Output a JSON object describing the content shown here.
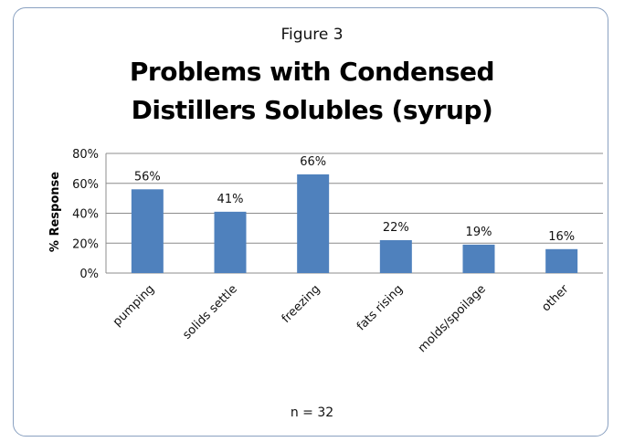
{
  "chart_data": {
    "type": "bar",
    "figure_label": "Figure 3",
    "title_lines": [
      "Problems with Condensed",
      "Distillers Solubles (syrup)"
    ],
    "ylabel": "% Response",
    "xlabel": "",
    "categories": [
      "pumping",
      "solids settle",
      "freezing",
      "fats rising",
      "molds/spoilage",
      "other"
    ],
    "values": [
      56,
      41,
      66,
      22,
      19,
      16
    ],
    "data_labels": [
      "56%",
      "41%",
      "66%",
      "22%",
      "19%",
      "16%"
    ],
    "ylim": [
      0,
      80
    ],
    "yticks": [
      0,
      20,
      40,
      60,
      80
    ],
    "ytick_labels": [
      "0%",
      "20%",
      "40%",
      "60%",
      "80%"
    ],
    "grid": true,
    "bar_color": "#4f81bd",
    "note": "n = 32"
  }
}
